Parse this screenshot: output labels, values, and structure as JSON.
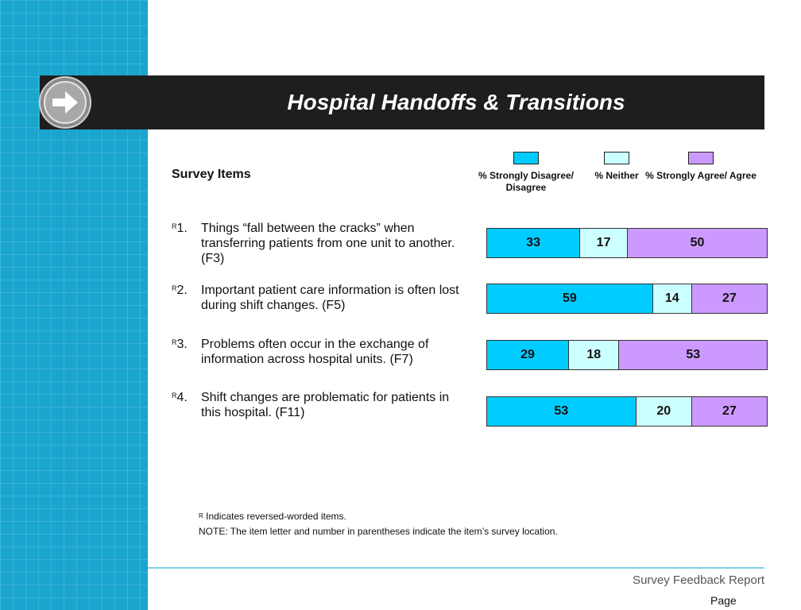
{
  "title": "Hospital Handoffs & Transitions",
  "survey_items_heading": "Survey Items",
  "legend": [
    {
      "label": "% Strongly Disagree/ Disagree",
      "color": "#00ccff"
    },
    {
      "label": "% Neither",
      "color": "#ccffff"
    },
    {
      "label": "% Strongly Agree/ Agree",
      "color": "#cc99ff"
    }
  ],
  "items": [
    {
      "marker": "R",
      "number": "1.",
      "text": "Things “fall between the cracks” when transferring patients from one unit to another.  (F3)"
    },
    {
      "marker": "R",
      "number": "2.",
      "text": "Important patient care information is often lost during shift changes.  (F5)"
    },
    {
      "marker": "R",
      "number": "3.",
      "text": "Problems often occur in the exchange of information across hospital units.  (F7)"
    },
    {
      "marker": "R",
      "number": "4.",
      "text": "Shift changes are problematic for patients in this hospital.  (F11)"
    }
  ],
  "chart_data": {
    "type": "bar",
    "stacked": true,
    "orientation": "horizontal",
    "categories": [
      "1",
      "2",
      "3",
      "4"
    ],
    "series": [
      {
        "name": "% Strongly Disagree/ Disagree",
        "values": [
          33,
          59,
          29,
          53
        ],
        "color": "#00ccff"
      },
      {
        "name": "% Neither",
        "values": [
          17,
          14,
          18,
          20
        ],
        "color": "#ccffff"
      },
      {
        "name": "% Strongly Agree/ Agree",
        "values": [
          50,
          27,
          53,
          27
        ],
        "color": "#cc99ff"
      }
    ],
    "xlim": [
      0,
      100
    ]
  },
  "notes": {
    "marker": "R",
    "reversed": " Indicates reversed-worded items.",
    "note": "NOTE: The item letter and number in parentheses indicate the item’s survey location."
  },
  "footer": {
    "report": "Survey Feedback Report",
    "page": "Page"
  }
}
